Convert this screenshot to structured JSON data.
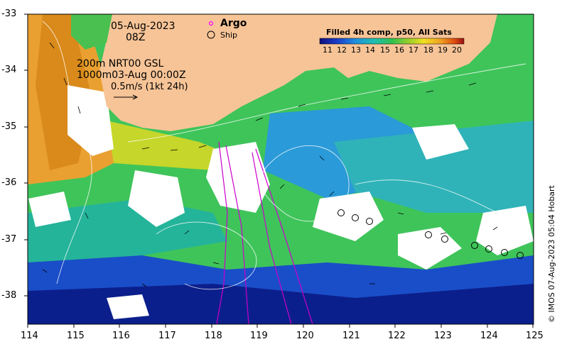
{
  "header": {
    "date": "05-Aug-2023",
    "time": "08Z"
  },
  "legend": {
    "argo_label": "Argo",
    "ship_label": "Ship",
    "argo_color": "#ff00ff"
  },
  "info": {
    "line1": "200m  NRT00 GSL",
    "line2": "1000m03-Aug 00:00Z",
    "line3": "0.5m/s (1kt 24h)"
  },
  "colorbar": {
    "title": "Filled 4h comp, p50, All Sats",
    "ticks": [
      "11",
      "12",
      "13",
      "14",
      "15",
      "16",
      "17",
      "18",
      "19",
      "20"
    ]
  },
  "axes": {
    "x_ticks": [
      "114",
      "115",
      "116",
      "117",
      "118",
      "119",
      "120",
      "121",
      "122",
      "123",
      "124",
      "125"
    ],
    "y_ticks": [
      "-33",
      "-34",
      "-35",
      "-36",
      "-37",
      "-38"
    ]
  },
  "colors": {
    "land": "#f7c497",
    "cloud": "#ffffff",
    "sst_cold": "#0b1f8c",
    "sst_mid": "#3fc45a",
    "sst_warm": "#e88a1c",
    "track": "#cc00cc"
  },
  "copyright": "© IMOS 07-Aug-2023 05:04 Hobart"
}
